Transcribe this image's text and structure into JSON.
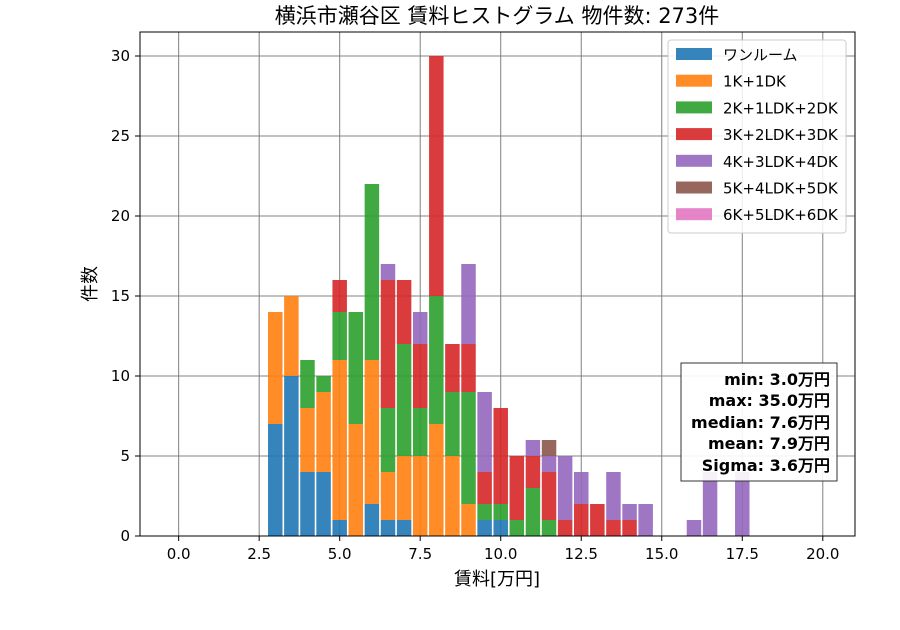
{
  "chart_data": {
    "type": "bar",
    "stacked": true,
    "title": "横浜市瀬谷区 賃料ヒストグラム  物件数: 273件",
    "xlabel": "賃料[万円]",
    "ylabel": "件数",
    "xlim": [
      -1.2,
      21.0
    ],
    "ylim": [
      0,
      31.5
    ],
    "xticks": [
      0.0,
      2.5,
      5.0,
      7.5,
      10.0,
      12.5,
      15.0,
      17.5,
      20.0
    ],
    "xtick_labels": [
      "0.0",
      "2.5",
      "5.0",
      "7.5",
      "10.0",
      "12.5",
      "15.0",
      "17.5",
      "20.0"
    ],
    "yticks": [
      0,
      5,
      10,
      15,
      20,
      25,
      30
    ],
    "ytick_labels": [
      "0",
      "5",
      "10",
      "15",
      "20",
      "25",
      "30"
    ],
    "grid": true,
    "legend_position": "top-right",
    "bin_width": 0.5,
    "bin_starts": [
      2.75,
      3.25,
      3.75,
      4.25,
      4.75,
      5.25,
      5.75,
      6.25,
      6.75,
      7.25,
      7.75,
      8.25,
      8.75,
      9.25,
      9.75,
      10.25,
      10.75,
      11.25,
      11.75,
      12.25,
      12.75,
      13.25,
      13.75,
      14.25,
      14.75,
      15.25,
      15.75,
      16.25,
      16.75,
      17.25
    ],
    "series": [
      {
        "name": "ワンルーム",
        "color": "#1f77b4",
        "values": [
          7,
          10,
          4,
          4,
          1,
          0,
          2,
          1,
          1,
          0,
          0,
          0,
          0,
          1,
          1,
          0,
          0,
          0,
          0,
          0,
          0,
          0,
          0,
          0,
          0,
          0,
          0,
          0,
          0,
          0
        ]
      },
      {
        "name": "1K+1DK",
        "color": "#ff7f0e",
        "values": [
          7,
          5,
          4,
          5,
          10,
          7,
          9,
          3,
          4,
          5,
          7,
          5,
          2,
          0,
          0,
          0,
          0,
          0,
          0,
          0,
          0,
          0,
          0,
          0,
          0,
          0,
          0,
          0,
          0,
          0
        ]
      },
      {
        "name": "2K+1LDK+2DK",
        "color": "#2ca02c",
        "values": [
          0,
          0,
          3,
          1,
          3,
          7,
          11,
          4,
          7,
          3,
          8,
          4,
          7,
          1,
          1,
          1,
          3,
          1,
          0,
          0,
          0,
          0,
          0,
          0,
          0,
          0,
          0,
          0,
          0,
          0
        ]
      },
      {
        "name": "3K+2LDK+3DK",
        "color": "#d62728",
        "values": [
          0,
          0,
          0,
          0,
          2,
          0,
          0,
          8,
          4,
          4,
          15,
          3,
          3,
          2,
          6,
          4,
          2,
          3,
          1,
          2,
          2,
          1,
          1,
          0,
          0,
          0,
          0,
          0,
          0,
          0
        ]
      },
      {
        "name": "4K+3LDK+4DK",
        "color": "#9467bd",
        "values": [
          0,
          0,
          0,
          0,
          0,
          0,
          0,
          1,
          0,
          2,
          0,
          0,
          5,
          5,
          0,
          0,
          1,
          1,
          4,
          2,
          0,
          3,
          1,
          2,
          0,
          0,
          1,
          4,
          0,
          4
        ]
      },
      {
        "name": "5K+4LDK+5DK",
        "color": "#8c564b",
        "values": [
          0,
          0,
          0,
          0,
          0,
          0,
          0,
          0,
          0,
          0,
          0,
          0,
          0,
          0,
          0,
          0,
          0,
          1,
          0,
          0,
          0,
          0,
          0,
          0,
          0,
          0,
          0,
          0,
          0,
          0
        ]
      },
      {
        "name": "6K+5LDK+6DK",
        "color": "#e377c2",
        "values": [
          0,
          0,
          0,
          0,
          0,
          0,
          0,
          0,
          0,
          0,
          0,
          0,
          0,
          0,
          0,
          0,
          0,
          0,
          0,
          0,
          0,
          0,
          0,
          0,
          0,
          0,
          0,
          0,
          0,
          0
        ]
      }
    ],
    "stats": {
      "min": "min: 3.0万円",
      "max": "max: 35.0万円",
      "median": "median: 7.6万円",
      "mean": "mean: 7.9万円",
      "sigma": "Sigma: 3.6万円"
    }
  }
}
